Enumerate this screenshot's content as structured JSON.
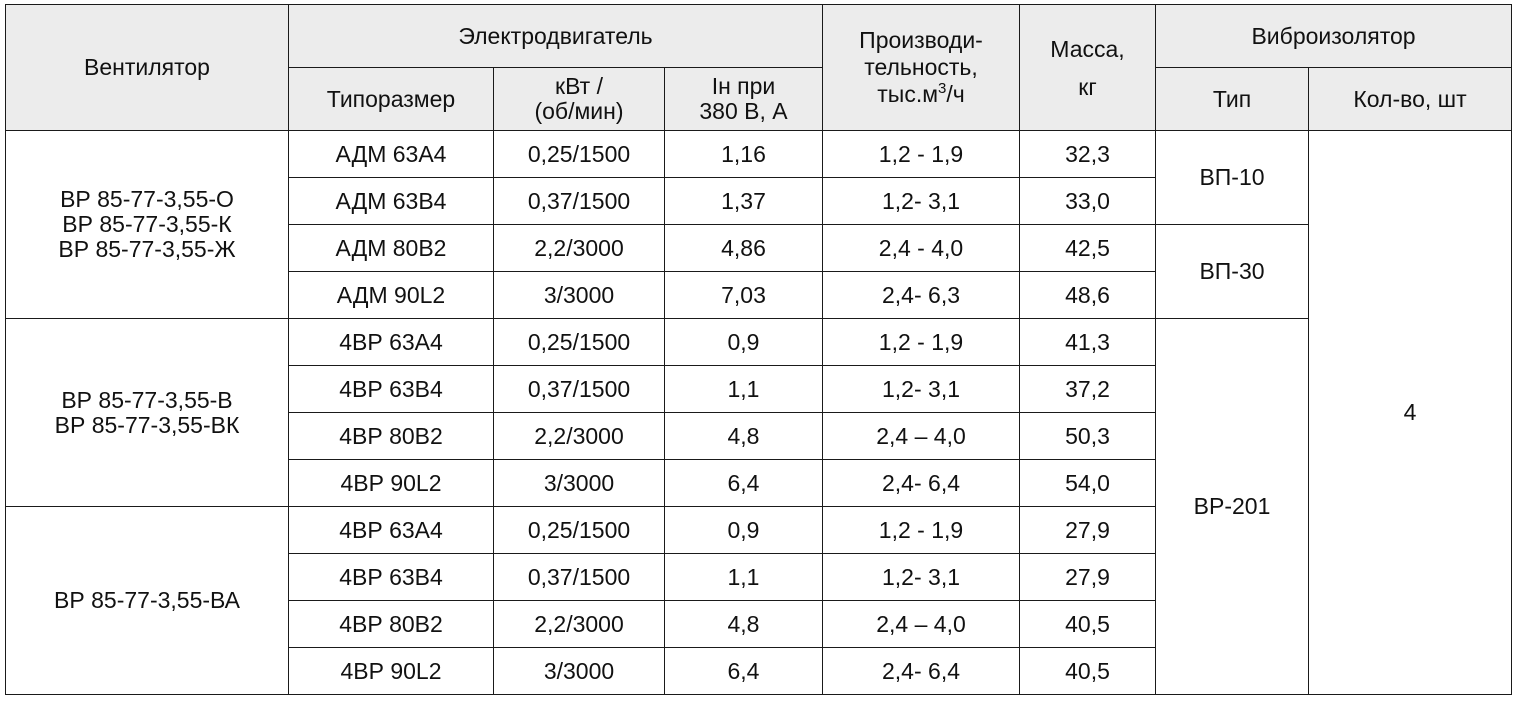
{
  "header": {
    "fan": "Вентилятор",
    "motor": "Электродвигатель",
    "motor_model": "Типоразмер",
    "motor_power": "кВт /\n(об/мин)",
    "motor_current": "Iн при\n380 В, А",
    "capacity_pre": "Производи-\nтельность,\nтыс.м",
    "capacity_sup": "3",
    "capacity_post": "/ч",
    "mass": "Масса,\nкг",
    "isolator": "Виброизолятор",
    "isolator_type": "Тип",
    "isolator_qty": "Кол-во, шт"
  },
  "groups": [
    {
      "fans": "ВР 85-77-3,55-О\nВР 85-77-3,55-К\nВР 85-77-3,55-Ж",
      "rows": [
        {
          "model": "АДМ 63А4",
          "power": "0,25/1500",
          "current": "1,16",
          "capacity": "1,2 - 1,9",
          "mass": "32,3"
        },
        {
          "model": "АДМ 63В4",
          "power": "0,37/1500",
          "current": "1,37",
          "capacity": "1,2- 3,1",
          "mass": "33,0"
        },
        {
          "model": "АДМ 80В2",
          "power": "2,2/3000",
          "current": "4,86",
          "capacity": "2,4 - 4,0",
          "mass": "42,5"
        },
        {
          "model": "АДМ 90L2",
          "power": "3/3000",
          "current": "7,03",
          "capacity": "2,4- 6,3",
          "mass": "48,6"
        }
      ]
    },
    {
      "fans": "ВР 85-77-3,55-В\nВР 85-77-3,55-ВК",
      "rows": [
        {
          "model": "4ВР 63А4",
          "power": "0,25/1500",
          "current": "0,9",
          "capacity": "1,2 - 1,9",
          "mass": "41,3"
        },
        {
          "model": "4ВР 63В4",
          "power": "0,37/1500",
          "current": "1,1",
          "capacity": "1,2- 3,1",
          "mass": "37,2"
        },
        {
          "model": "4ВР 80В2",
          "power": "2,2/3000",
          "current": "4,8",
          "capacity": "2,4 – 4,0",
          "mass": "50,3"
        },
        {
          "model": "4ВР 90L2",
          "power": "3/3000",
          "current": "6,4",
          "capacity": "2,4- 6,4",
          "mass": "54,0"
        }
      ]
    },
    {
      "fans": "ВР 85-77-3,55-ВА",
      "rows": [
        {
          "model": "4ВР 63А4",
          "power": "0,25/1500",
          "current": "0,9",
          "capacity": "1,2 - 1,9",
          "mass": "27,9"
        },
        {
          "model": "4ВР 63В4",
          "power": "0,37/1500",
          "current": "1,1",
          "capacity": "1,2- 3,1",
          "mass": "27,9"
        },
        {
          "model": "4ВР 80В2",
          "power": "2,2/3000",
          "current": "4,8",
          "capacity": "2,4 – 4,0",
          "mass": "40,5"
        },
        {
          "model": "4ВР 90L2",
          "power": "3/3000",
          "current": "6,4",
          "capacity": "2,4- 6,4",
          "mass": "40,5"
        }
      ]
    }
  ],
  "isolator_types": [
    "ВП-10",
    "ВП-30",
    "ВР-201"
  ],
  "isolator_qty_value": "4"
}
